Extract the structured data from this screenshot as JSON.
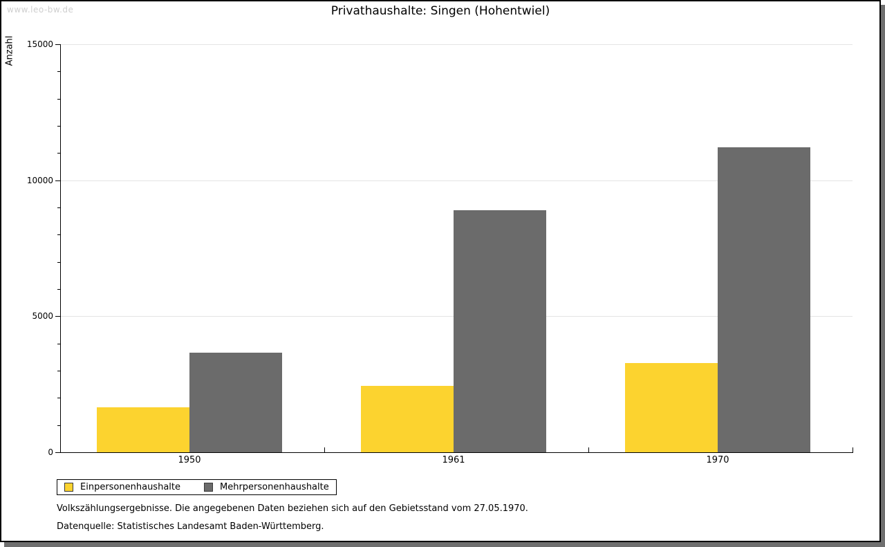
{
  "watermark": "www.leo-bw.de",
  "title": "Privathaushalte: Singen (Hohentwiel)",
  "chart_data": {
    "type": "bar",
    "title": "Privathaushalte: Singen (Hohentwiel)",
    "xlabel": "",
    "ylabel": "Anzahl",
    "categories": [
      "1950",
      "1961",
      "1970"
    ],
    "series": [
      {
        "name": "Einpersonenhaushalte",
        "color": "#FCD32F",
        "values": [
          1640,
          2430,
          3290
        ]
      },
      {
        "name": "Mehrpersonenhaushalte",
        "color": "#6B6B6B",
        "values": [
          3650,
          8890,
          11220
        ]
      }
    ],
    "ylim": [
      0,
      15000
    ],
    "y_major_step": 5000,
    "y_minor_step": 1000,
    "y_tick_labels": [
      "0",
      "5000",
      "10000",
      "15000"
    ],
    "grid": "horizontal-major-on",
    "legend_position": "bottom-left"
  },
  "footnotes": {
    "line1": "Volkszählungsergebnisse. Die angegebenen Daten beziehen sich auf den Gebietsstand vom 27.05.1970.",
    "line2": "Datenquelle: Statistisches Landesamt Baden-Württemberg."
  },
  "colors": {
    "series1": "#FCD32F",
    "series2": "#6B6B6B",
    "gridline": "#e4e4e4",
    "axis": "#000000",
    "watermark": "#cfcfcf",
    "frame_border": "#000000",
    "frame_shadow": "#6f6f6f",
    "background": "#ffffff"
  }
}
